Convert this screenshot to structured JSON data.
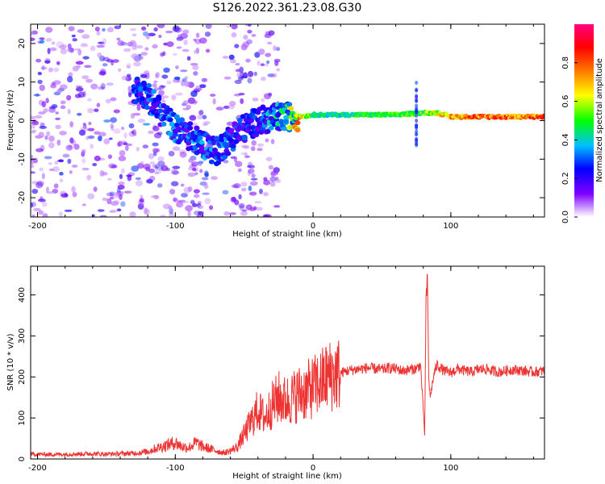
{
  "figure_title": "S126.2022.361.23.08.G30",
  "chart_data": [
    {
      "type": "heatmap",
      "xlabel": "Height of straight line (km)",
      "ylabel": "Frequency (Hz)",
      "xlim": [
        -205,
        168
      ],
      "ylim": [
        -25,
        25
      ],
      "x_ticks": [
        -200,
        -100,
        0,
        100
      ],
      "y_ticks": [
        -20,
        -10,
        0,
        10,
        20
      ],
      "colorbar": {
        "label": "Normalized spectral amplitude",
        "range": [
          0,
          1
        ],
        "ticks": [
          "0.0",
          "0.2",
          "0.4",
          "0.6",
          "0.8"
        ],
        "colormap": [
          "#ffffff",
          "#8000ff",
          "#0000ff",
          "#00c0ff",
          "#00ff00",
          "#ffff00",
          "#ff8000",
          "#ff0000",
          "#ff0080"
        ]
      },
      "ridge": [
        {
          "x": -125,
          "freq": 8,
          "amp": 0.3
        },
        {
          "x": -110,
          "freq": 2,
          "amp": 0.35
        },
        {
          "x": -100,
          "freq": -2,
          "amp": 0.35
        },
        {
          "x": -85,
          "freq": -5,
          "amp": 0.35
        },
        {
          "x": -70,
          "freq": -8,
          "amp": 0.35
        },
        {
          "x": -55,
          "freq": -3,
          "amp": 0.3
        },
        {
          "x": -40,
          "freq": 0,
          "amp": 0.3
        },
        {
          "x": -20,
          "freq": 1,
          "amp": 0.5
        },
        {
          "x": -10,
          "freq": 1,
          "amp": 0.8
        },
        {
          "x": 0,
          "freq": 1.5,
          "amp": 0.5
        },
        {
          "x": 20,
          "freq": 1.5,
          "amp": 0.5
        },
        {
          "x": 40,
          "freq": 1.5,
          "amp": 0.55
        },
        {
          "x": 60,
          "freq": 1.5,
          "amp": 0.6
        },
        {
          "x": 80,
          "freq": 2,
          "amp": 0.6
        },
        {
          "x": 90,
          "freq": 2,
          "amp": 0.7
        },
        {
          "x": 100,
          "freq": 1,
          "amp": 0.85
        },
        {
          "x": 120,
          "freq": 1,
          "amp": 0.9
        },
        {
          "x": 168,
          "freq": 1,
          "amp": 0.9
        }
      ]
    },
    {
      "type": "line",
      "xlabel": "Height of straight line (km)",
      "ylabel": "SNR (10 * v/v)",
      "xlim": [
        -205,
        168
      ],
      "ylim": [
        0,
        470
      ],
      "x_ticks": [
        -200,
        -100,
        0,
        100
      ],
      "y_ticks": [
        0,
        100,
        200,
        300,
        400
      ],
      "color": "#ee3333",
      "series": [
        {
          "x": [
            -205,
            -190,
            -175,
            -160,
            -150,
            -140,
            -130,
            -120,
            -115,
            -110,
            -105,
            -100,
            -95,
            -90,
            -85,
            -80,
            -75,
            -70,
            -65,
            -60,
            -55,
            -50,
            -45,
            -40,
            -35,
            -30,
            -25,
            -20,
            -15,
            -10,
            -5,
            0,
            5,
            10,
            15,
            20,
            25,
            30,
            35,
            40,
            45,
            50,
            55,
            60,
            65,
            70,
            75,
            78,
            80,
            81,
            82,
            83,
            84,
            85,
            88,
            90,
            95,
            100,
            105,
            110,
            115,
            120,
            125,
            130,
            135,
            140,
            145,
            150,
            155,
            160,
            168
          ],
          "values": [
            12,
            11,
            12,
            13,
            12,
            13,
            14,
            18,
            25,
            30,
            35,
            40,
            30,
            28,
            40,
            30,
            25,
            20,
            15,
            20,
            30,
            60,
            90,
            120,
            100,
            130,
            150,
            140,
            150,
            160,
            165,
            175,
            185,
            200,
            205,
            210,
            215,
            218,
            220,
            222,
            220,
            218,
            222,
            220,
            215,
            218,
            220,
            230,
            120,
            60,
            380,
            440,
            200,
            150,
            210,
            230,
            215,
            210,
            220,
            215,
            212,
            218,
            220,
            215,
            212,
            215,
            218,
            216,
            214,
            212,
            215
          ]
        }
      ]
    }
  ]
}
